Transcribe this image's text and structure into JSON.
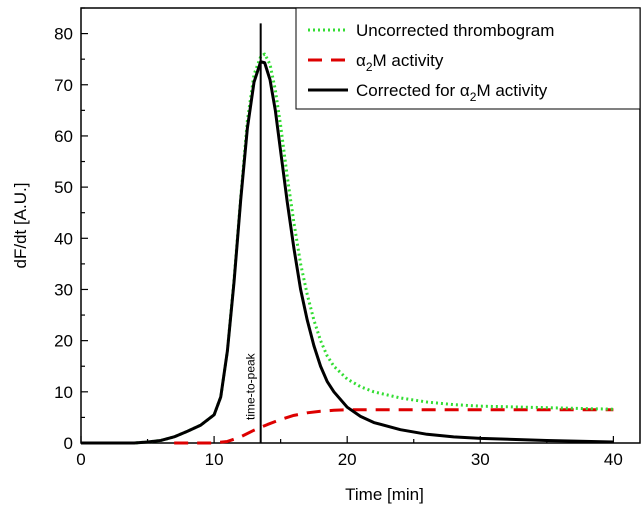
{
  "chart_data": {
    "type": "line",
    "xlabel": "Time [min]",
    "ylabel": "dF/dt [A.U.]",
    "xlim": [
      0,
      42
    ],
    "ylim": [
      0,
      85
    ],
    "x_ticks": [
      "0",
      "10",
      "20",
      "30",
      "40"
    ],
    "y_ticks": [
      "0",
      "10",
      "20",
      "30",
      "40",
      "50",
      "60",
      "70",
      "80"
    ],
    "grid": false,
    "legend_position": "top-right",
    "annotation": {
      "text": "time-to-peak",
      "x": 13.5,
      "y_top": 82
    },
    "series": [
      {
        "name": "Uncorrected thrombogram",
        "style": "dotted",
        "color": "#33dd33",
        "points": [
          [
            0,
            0
          ],
          [
            4,
            0
          ],
          [
            5,
            0.2
          ],
          [
            6,
            0.5
          ],
          [
            7,
            1.2
          ],
          [
            8,
            2.3
          ],
          [
            9,
            3.5
          ],
          [
            10,
            5.5
          ],
          [
            10.5,
            9
          ],
          [
            11,
            18
          ],
          [
            11.5,
            32
          ],
          [
            12,
            48
          ],
          [
            12.5,
            63
          ],
          [
            13,
            72
          ],
          [
            13.5,
            75.5
          ],
          [
            13.8,
            76
          ],
          [
            14.2,
            74
          ],
          [
            14.6,
            69
          ],
          [
            15,
            62
          ],
          [
            15.5,
            52
          ],
          [
            16,
            43
          ],
          [
            16.5,
            35
          ],
          [
            17,
            29
          ],
          [
            17.5,
            24
          ],
          [
            18,
            20
          ],
          [
            18.5,
            17
          ],
          [
            19,
            15
          ],
          [
            20,
            12.5
          ],
          [
            21,
            11
          ],
          [
            22,
            10
          ],
          [
            24,
            8.8
          ],
          [
            26,
            8
          ],
          [
            28,
            7.5
          ],
          [
            30,
            7.2
          ],
          [
            35,
            6.9
          ],
          [
            40,
            6.6
          ]
        ]
      },
      {
        "name": "α2M activity",
        "style": "dashed",
        "color": "#dd0000",
        "points": [
          [
            7,
            0
          ],
          [
            10,
            0
          ],
          [
            11,
            0.3
          ],
          [
            12,
            1.2
          ],
          [
            13,
            2.5
          ],
          [
            14,
            3.6
          ],
          [
            15,
            4.6
          ],
          [
            16,
            5.4
          ],
          [
            17,
            5.9
          ],
          [
            18,
            6.2
          ],
          [
            19,
            6.4
          ],
          [
            20,
            6.5
          ],
          [
            22,
            6.5
          ],
          [
            30,
            6.5
          ],
          [
            40,
            6.5
          ]
        ]
      },
      {
        "name": "Corrected for α2M activity",
        "style": "solid",
        "color": "#000000",
        "points": [
          [
            0,
            0
          ],
          [
            4,
            0
          ],
          [
            5,
            0.2
          ],
          [
            6,
            0.5
          ],
          [
            7,
            1.2
          ],
          [
            8,
            2.3
          ],
          [
            9,
            3.5
          ],
          [
            10,
            5.5
          ],
          [
            10.5,
            9
          ],
          [
            11,
            18
          ],
          [
            11.5,
            31.5
          ],
          [
            12,
            47.5
          ],
          [
            12.5,
            61.5
          ],
          [
            13,
            70.5
          ],
          [
            13.5,
            74.5
          ],
          [
            13.8,
            74.3
          ],
          [
            14.2,
            71
          ],
          [
            14.6,
            65
          ],
          [
            15,
            57
          ],
          [
            15.5,
            47
          ],
          [
            16,
            38
          ],
          [
            16.5,
            30
          ],
          [
            17,
            24
          ],
          [
            17.5,
            19
          ],
          [
            18,
            15
          ],
          [
            18.5,
            12
          ],
          [
            19,
            10
          ],
          [
            20,
            7
          ],
          [
            21,
            5.2
          ],
          [
            22,
            4
          ],
          [
            24,
            2.6
          ],
          [
            26,
            1.7
          ],
          [
            28,
            1.2
          ],
          [
            30,
            0.9
          ],
          [
            35,
            0.5
          ],
          [
            40,
            0.2
          ]
        ]
      }
    ]
  },
  "legend": [
    {
      "label": "Uncorrected thrombogram",
      "style": "dotted",
      "color": "#33dd33"
    },
    {
      "label_pre": "α",
      "label_sub": "2",
      "label_post": "M activity",
      "style": "dashed",
      "color": "#dd0000"
    },
    {
      "label_pre": "Corrected for α",
      "label_sub": "2",
      "label_post": "M activity",
      "style": "solid",
      "color": "#000000"
    }
  ]
}
